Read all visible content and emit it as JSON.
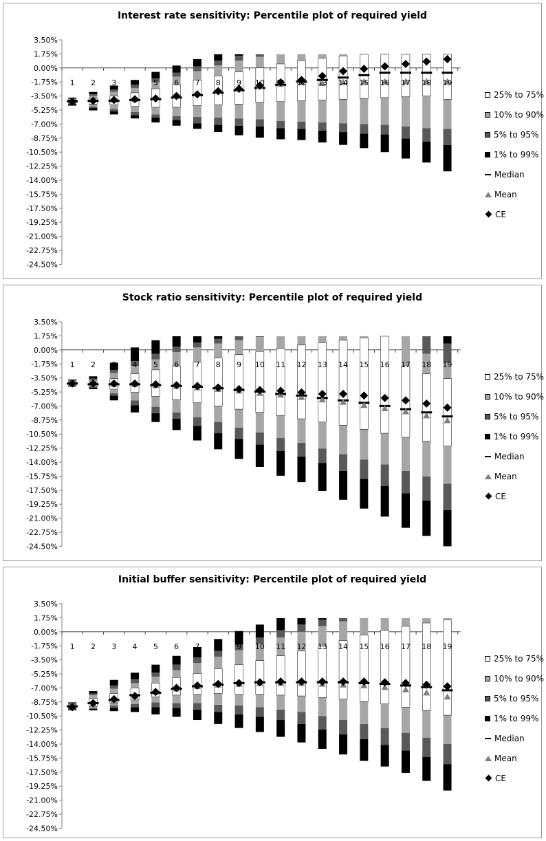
{
  "chart_data": [
    {
      "type": "box",
      "title": "Interest rate sensitivity: Percentile plot of required yield",
      "y_ticks": [
        "3.50%",
        "1.75%",
        "0.00%",
        "-1.75%",
        "-3.50%",
        "-5.25%",
        "-7.00%",
        "-8.75%",
        "-10.50%",
        "-12.25%",
        "-14.00%",
        "-15.75%",
        "-17.50%",
        "-19.25%",
        "-21.00%",
        "-22.75%",
        "-24.50%"
      ],
      "ylim": [
        -24.5,
        3.5
      ],
      "categories": [
        "1",
        "2",
        "3",
        "4",
        "5",
        "6",
        "7",
        "8",
        "9",
        "10",
        "11",
        "12",
        "13",
        "14",
        "15",
        "16",
        "17",
        "18",
        "19"
      ],
      "legend": [
        "25% to 75%",
        "10% to 90%",
        "5% to 95%",
        "1% to 99%",
        "Median",
        "Mean",
        "CE"
      ],
      "legend_placement": "right",
      "series": [
        {
          "name": "1%",
          "values": [
            -4.7,
            -5.3,
            -5.8,
            -6.3,
            -6.8,
            -7.2,
            -7.6,
            -8.0,
            -8.4,
            -8.7,
            -8.9,
            -9.0,
            -9.3,
            -9.6,
            -10.0,
            -10.5,
            -11.3,
            -11.8,
            -12.9
          ]
        },
        {
          "name": "5%",
          "values": [
            -4.5,
            -5.0,
            -5.4,
            -5.9,
            -6.2,
            -6.5,
            -6.9,
            -7.1,
            -7.2,
            -7.3,
            -7.5,
            -7.6,
            -7.8,
            -8.0,
            -8.2,
            -8.3,
            -8.8,
            -9.2,
            -9.6
          ]
        },
        {
          "name": "10%",
          "values": [
            -4.4,
            -4.8,
            -5.1,
            -5.5,
            -5.8,
            -6.0,
            -6.1,
            -6.2,
            -6.3,
            -6.4,
            -6.6,
            -6.7,
            -6.8,
            -6.9,
            -7.0,
            -7.1,
            -7.3,
            -7.5,
            -7.6
          ]
        },
        {
          "name": "25%",
          "values": [
            -4.3,
            -4.5,
            -4.6,
            -4.8,
            -4.9,
            -4.9,
            -4.7,
            -4.6,
            -4.5,
            -4.3,
            -4.2,
            -4.1,
            -4.0,
            -3.9,
            -3.8,
            -3.7,
            -3.6,
            -3.5,
            -3.9
          ]
        },
        {
          "name": "Median",
          "values": [
            -4.15,
            -4.1,
            -4.1,
            -4.0,
            -3.9,
            -3.7,
            -3.4,
            -3.1,
            -2.8,
            -2.5,
            -2.1,
            -1.7,
            -1.5,
            -1.2,
            -0.9,
            -0.6,
            -0.6,
            -0.6,
            -0.6
          ]
        },
        {
          "name": "75%",
          "values": [
            -4.0,
            -3.8,
            -3.5,
            -3.1,
            -2.6,
            -2.1,
            -1.5,
            -1.0,
            -0.5,
            0.0,
            0.5,
            0.9,
            1.2,
            1.5,
            1.7,
            1.7,
            1.7,
            1.7,
            1.7
          ]
        },
        {
          "name": "90%",
          "values": [
            -3.9,
            -3.5,
            -3.0,
            -2.5,
            -1.8,
            -1.1,
            -0.4,
            0.3,
            0.9,
            1.4,
            1.7,
            1.7,
            1.7,
            1.7,
            1.7,
            1.7,
            1.7,
            1.7,
            1.7
          ]
        },
        {
          "name": "95%",
          "values": [
            -3.8,
            -3.3,
            -2.7,
            -2.1,
            -1.3,
            -0.6,
            0.2,
            0.9,
            1.5,
            1.7,
            1.7,
            1.7,
            1.7,
            1.7,
            1.7,
            1.7,
            1.7,
            1.7,
            1.7
          ]
        },
        {
          "name": "99%",
          "values": [
            -3.7,
            -3.0,
            -2.2,
            -1.5,
            -0.5,
            0.3,
            1.1,
            1.7,
            1.7,
            1.7,
            1.7,
            1.7,
            1.7,
            1.7,
            1.7,
            1.7,
            1.7,
            1.7,
            1.7
          ]
        },
        {
          "name": "Mean",
          "values": [
            -4.1,
            -4.0,
            -4.0,
            -3.9,
            -3.7,
            -3.5,
            -3.2,
            -2.9,
            -2.6,
            -2.3,
            -2.0,
            -1.8,
            -1.9,
            -1.8,
            -1.7,
            -1.7,
            -1.7,
            -1.7,
            -1.7
          ]
        },
        {
          "name": "CE",
          "values": [
            -4.2,
            -4.1,
            -4.0,
            -3.9,
            -3.8,
            -3.5,
            -3.3,
            -2.9,
            -2.6,
            -2.2,
            -1.8,
            -1.5,
            -1.0,
            -0.4,
            -0.1,
            0.2,
            0.5,
            0.8,
            1.1
          ]
        }
      ]
    },
    {
      "type": "box",
      "title": "Stock ratio sensitivity: Percentile plot of required yield",
      "y_ticks": [
        "3.50%",
        "1.75%",
        "0.00%",
        "-1.75%",
        "-3.50%",
        "-5.25%",
        "-7.00%",
        "-8.75%",
        "-10.50%",
        "-12.25%",
        "-14.00%",
        "-15.75%",
        "-17.50%",
        "-19.25%",
        "-21.00%",
        "-22.75%",
        "-24.50%"
      ],
      "ylim": [
        -24.5,
        3.5
      ],
      "categories": [
        "1",
        "2",
        "3",
        "4",
        "5",
        "6",
        "7",
        "8",
        "9",
        "10",
        "11",
        "12",
        "13",
        "14",
        "15",
        "16",
        "17",
        "18",
        "19"
      ],
      "legend": [
        "25% to 75%",
        "10% to 90%",
        "5% to 95%",
        "1% to 99%",
        "Median",
        "Mean",
        "CE"
      ],
      "legend_placement": "right",
      "series": [
        {
          "name": "1%",
          "values": [
            -4.6,
            -4.9,
            -6.3,
            -7.8,
            -9.0,
            -10.0,
            -11.3,
            -12.4,
            -13.6,
            -14.6,
            -15.7,
            -16.5,
            -17.6,
            -18.7,
            -19.8,
            -20.8,
            -22.2,
            -23.2,
            -24.5
          ]
        },
        {
          "name": "5%",
          "values": [
            -4.5,
            -4.7,
            -5.7,
            -6.9,
            -7.9,
            -8.6,
            -9.5,
            -10.4,
            -11.1,
            -11.8,
            -12.6,
            -13.3,
            -14.1,
            -15.1,
            -16.1,
            -17.0,
            -17.9,
            -18.8,
            -20.0
          ]
        },
        {
          "name": "10%",
          "values": [
            -4.4,
            -4.6,
            -5.4,
            -6.3,
            -7.1,
            -7.8,
            -8.4,
            -9.0,
            -9.7,
            -10.3,
            -11.0,
            -11.6,
            -12.3,
            -13.0,
            -13.7,
            -14.3,
            -15.1,
            -15.8,
            -16.7
          ]
        },
        {
          "name": "25%",
          "values": [
            -4.3,
            -4.5,
            -4.9,
            -5.3,
            -5.8,
            -6.2,
            -6.6,
            -7.0,
            -7.4,
            -7.8,
            -8.2,
            -8.6,
            -9.0,
            -9.4,
            -9.9,
            -10.4,
            -10.9,
            -11.4,
            -12.0
          ]
        },
        {
          "name": "Median",
          "values": [
            -4.2,
            -4.3,
            -4.3,
            -4.3,
            -4.4,
            -4.5,
            -4.6,
            -4.8,
            -5.0,
            -5.2,
            -5.5,
            -5.7,
            -6.0,
            -6.3,
            -6.6,
            -7.0,
            -7.4,
            -7.8,
            -8.3
          ]
        },
        {
          "name": "75%",
          "values": [
            -4.0,
            -4.0,
            -3.6,
            -3.0,
            -2.5,
            -2.0,
            -1.5,
            -1.0,
            -0.6,
            -0.2,
            0.2,
            0.6,
            0.9,
            1.2,
            1.5,
            1.7,
            -2.0,
            -3.0,
            -3.6
          ]
        },
        {
          "name": "90%",
          "values": [
            -3.9,
            -3.8,
            -2.9,
            -2.0,
            -1.2,
            -0.3,
            0.3,
            0.8,
            1.2,
            1.6,
            1.7,
            1.7,
            1.7,
            1.7,
            1.7,
            1.7,
            1.7,
            -0.5,
            -1.6
          ]
        },
        {
          "name": "95%",
          "values": [
            -3.8,
            -3.6,
            -2.5,
            -1.4,
            -0.5,
            0.4,
            0.9,
            1.4,
            1.7,
            1.7,
            1.7,
            1.7,
            1.7,
            1.7,
            1.7,
            1.7,
            1.7,
            1.7,
            0.8
          ]
        },
        {
          "name": "99%",
          "values": [
            -3.7,
            -3.3,
            -1.6,
            0.3,
            1.2,
            1.7,
            1.7,
            1.7,
            1.7,
            1.7,
            1.7,
            1.7,
            1.7,
            1.7,
            1.7,
            1.7,
            1.7,
            1.7,
            1.7
          ]
        },
        {
          "name": "Mean",
          "values": [
            -4.2,
            -4.2,
            -4.3,
            -4.3,
            -4.4,
            -4.5,
            -4.7,
            -4.9,
            -5.1,
            -5.4,
            -5.6,
            -5.9,
            -6.2,
            -6.5,
            -6.9,
            -7.3,
            -7.7,
            -8.2,
            -8.8
          ]
        },
        {
          "name": "CE",
          "values": [
            -4.2,
            -4.2,
            -4.2,
            -4.2,
            -4.3,
            -4.4,
            -4.5,
            -4.7,
            -4.9,
            -5.0,
            -5.1,
            -5.3,
            -5.5,
            -5.5,
            -5.7,
            -6.0,
            -6.3,
            -6.7,
            -7.2
          ]
        }
      ]
    },
    {
      "type": "box",
      "title": "Initial buffer sensitivity: Percentile plot of required yield",
      "y_ticks": [
        "3.50%",
        "1.75%",
        "0.00%",
        "-1.75%",
        "-3.50%",
        "-5.25%",
        "-7.00%",
        "-8.75%",
        "-10.50%",
        "-12.25%",
        "-14.00%",
        "-15.75%",
        "-17.50%",
        "-19.25%",
        "-21.00%",
        "-22.75%",
        "-24.50%"
      ],
      "ylim": [
        -24.5,
        3.5
      ],
      "categories": [
        "1",
        "2",
        "3",
        "4",
        "5",
        "6",
        "7",
        "8",
        "9",
        "10",
        "11",
        "12",
        "13",
        "14",
        "15",
        "16",
        "17",
        "18",
        "19"
      ],
      "legend": [
        "25% to 75%",
        "10% to 90%",
        "5% to 95%",
        "1% to 99%",
        "Median",
        "Mean",
        "CE"
      ],
      "legend_placement": "right",
      "series": [
        {
          "name": "1%",
          "values": [
            -9.8,
            -9.8,
            -9.9,
            -10.0,
            -10.3,
            -10.6,
            -11.0,
            -11.5,
            -12.0,
            -12.5,
            -13.1,
            -13.8,
            -14.6,
            -15.3,
            -16.1,
            -16.8,
            -17.6,
            -18.6,
            -19.8
          ]
        },
        {
          "name": "5%",
          "values": [
            -9.6,
            -9.6,
            -9.5,
            -9.4,
            -9.4,
            -9.5,
            -9.7,
            -10.0,
            -10.3,
            -10.6,
            -11.0,
            -11.5,
            -12.2,
            -12.8,
            -13.4,
            -14.1,
            -14.8,
            -15.6,
            -16.5
          ]
        },
        {
          "name": "10%",
          "values": [
            -9.5,
            -9.5,
            -9.2,
            -9.0,
            -8.8,
            -8.9,
            -8.9,
            -9.1,
            -9.2,
            -9.4,
            -9.7,
            -10.0,
            -10.5,
            -11.0,
            -11.5,
            -12.0,
            -12.6,
            -13.2,
            -14.0
          ]
        },
        {
          "name": "25%",
          "values": [
            -9.4,
            -9.3,
            -8.9,
            -8.5,
            -8.1,
            -7.9,
            -7.8,
            -7.7,
            -7.8,
            -7.8,
            -7.9,
            -8.0,
            -8.2,
            -8.4,
            -8.7,
            -9.0,
            -9.4,
            -9.8,
            -10.4
          ]
        },
        {
          "name": "Median",
          "values": [
            -9.3,
            -8.9,
            -8.5,
            -7.9,
            -7.6,
            -7.1,
            -6.8,
            -6.6,
            -6.4,
            -6.3,
            -6.3,
            -6.3,
            -6.3,
            -6.3,
            -6.4,
            -6.5,
            -6.7,
            -6.9,
            -7.3
          ]
        },
        {
          "name": "75%",
          "values": [
            -9.1,
            -8.3,
            -7.7,
            -7.0,
            -6.4,
            -5.7,
            -5.2,
            -4.6,
            -4.1,
            -3.6,
            -3.0,
            -2.4,
            -1.8,
            -1.1,
            -0.4,
            0.2,
            0.7,
            1.1,
            1.5
          ]
        },
        {
          "name": "90%",
          "values": [
            -9.0,
            -7.9,
            -7.1,
            -6.4,
            -5.6,
            -4.8,
            -3.9,
            -3.1,
            -2.3,
            -1.5,
            -0.7,
            0.0,
            0.7,
            1.3,
            1.7,
            1.7,
            1.7,
            1.7,
            1.7
          ]
        },
        {
          "name": "95%",
          "values": [
            -8.9,
            -7.7,
            -6.7,
            -5.9,
            -5.1,
            -4.1,
            -3.2,
            -2.4,
            -1.6,
            -0.7,
            0.2,
            0.9,
            1.5,
            1.7,
            1.7,
            1.7,
            1.7,
            1.7,
            1.7
          ]
        },
        {
          "name": "99%",
          "values": [
            -8.8,
            -7.4,
            -6.0,
            -5.1,
            -4.1,
            -3.0,
            -1.9,
            -0.9,
            0.1,
            0.9,
            1.7,
            1.7,
            1.7,
            1.7,
            1.7,
            1.7,
            1.7,
            1.7,
            1.7
          ]
        },
        {
          "name": "Mean",
          "values": [
            -9.4,
            -9.0,
            -8.5,
            -8.0,
            -7.5,
            -7.1,
            -6.8,
            -6.6,
            -6.5,
            -6.4,
            -6.4,
            -6.4,
            -6.5,
            -6.6,
            -6.7,
            -6.9,
            -7.2,
            -7.6,
            -8.1
          ]
        },
        {
          "name": "CE",
          "values": [
            -9.4,
            -8.9,
            -8.4,
            -8.0,
            -7.5,
            -7.0,
            -6.7,
            -6.5,
            -6.4,
            -6.3,
            -6.2,
            -6.2,
            -6.2,
            -6.2,
            -6.2,
            -6.3,
            -6.4,
            -6.6,
            -6.8
          ]
        }
      ]
    }
  ],
  "colors": {
    "p25_75": "#ffffff",
    "p10_90": "#a6a6a6",
    "p5_95": "#595959",
    "p1_99": "#000000",
    "mean": "#7f7f7f",
    "ce": "#000000",
    "axis": "#7f7f7f"
  }
}
